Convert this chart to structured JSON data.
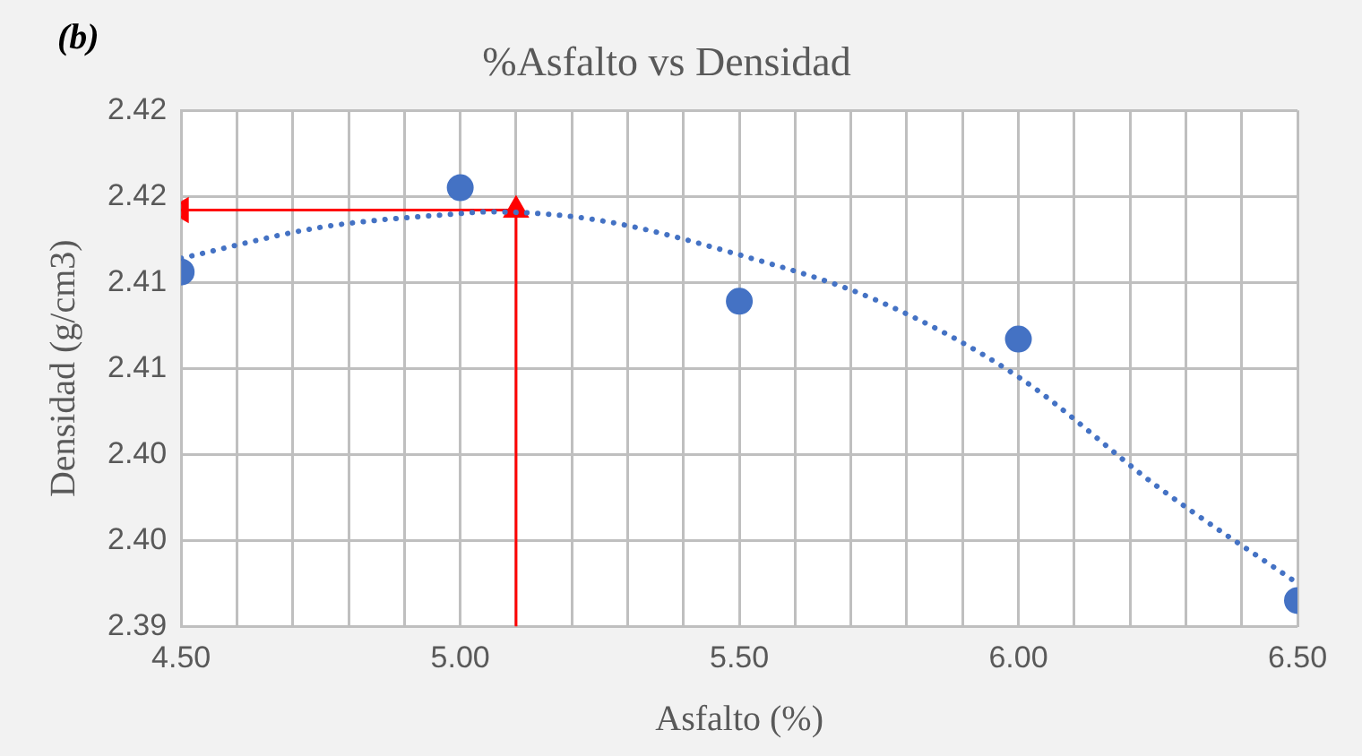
{
  "chart_data": {
    "type": "scatter",
    "title": "%Asfalto vs Densidad",
    "xlabel": "Asfalto (%)",
    "ylabel": "Densidad (g/cm3)",
    "annotations": [
      "(b)"
    ],
    "xlim": [
      4.5,
      6.5
    ],
    "ylim": [
      2.39,
      2.42
    ],
    "xticks": [
      {
        "value": 4.5,
        "label": "4.50"
      },
      {
        "value": 4.6,
        "label": null
      },
      {
        "value": 4.7,
        "label": null
      },
      {
        "value": 4.8,
        "label": null
      },
      {
        "value": 4.9,
        "label": null
      },
      {
        "value": 5.0,
        "label": "5.00"
      },
      {
        "value": 5.1,
        "label": null
      },
      {
        "value": 5.2,
        "label": null
      },
      {
        "value": 5.3,
        "label": null
      },
      {
        "value": 5.4,
        "label": null
      },
      {
        "value": 5.5,
        "label": "5.50"
      },
      {
        "value": 5.6,
        "label": null
      },
      {
        "value": 5.7,
        "label": null
      },
      {
        "value": 5.8,
        "label": null
      },
      {
        "value": 5.9,
        "label": null
      },
      {
        "value": 6.0,
        "label": "6.00"
      },
      {
        "value": 6.1,
        "label": null
      },
      {
        "value": 6.2,
        "label": null
      },
      {
        "value": 6.3,
        "label": null
      },
      {
        "value": 6.4,
        "label": null
      },
      {
        "value": 6.5,
        "label": "6.50"
      }
    ],
    "yticks": [
      {
        "value": 2.39,
        "label": "2.39"
      },
      {
        "value": 2.395,
        "label": "2.40"
      },
      {
        "value": 2.4,
        "label": "2.40"
      },
      {
        "value": 2.405,
        "label": "2.41"
      },
      {
        "value": 2.41,
        "label": "2.41"
      },
      {
        "value": 2.415,
        "label": "2.42"
      },
      {
        "value": 2.42,
        "label": "2.42"
      }
    ],
    "grid": true,
    "legend": false,
    "series": [
      {
        "type": "scatter",
        "color": "#4472c4",
        "marker": "circle",
        "x": [
          4.5,
          5.0,
          5.5,
          6.0,
          6.5
        ],
        "values": [
          2.4106,
          2.4155,
          2.4089,
          2.4067,
          2.3915
        ]
      },
      {
        "type": "line",
        "color": "#4472c4",
        "marker": "none",
        "line_style": "dotted",
        "x": [
          4.5,
          4.75,
          5.0,
          5.05,
          5.25,
          5.5,
          5.75,
          6.0,
          6.25,
          6.5
        ],
        "values": [
          2.4114,
          2.4132,
          2.414,
          2.4141,
          2.4136,
          2.4116,
          2.4089,
          2.4045,
          2.3981,
          2.3925
        ]
      },
      {
        "type": "line",
        "color": "#ff0000",
        "marker": "triangle",
        "line_style": "solid",
        "x": [
          5.1,
          5.1
        ],
        "values": [
          2.39,
          2.4142
        ]
      },
      {
        "type": "line",
        "color": "#ff0000",
        "marker": "triangle",
        "line_style": "solid",
        "x": [
          5.1,
          4.5
        ],
        "values": [
          2.4142,
          2.4142
        ]
      }
    ]
  }
}
